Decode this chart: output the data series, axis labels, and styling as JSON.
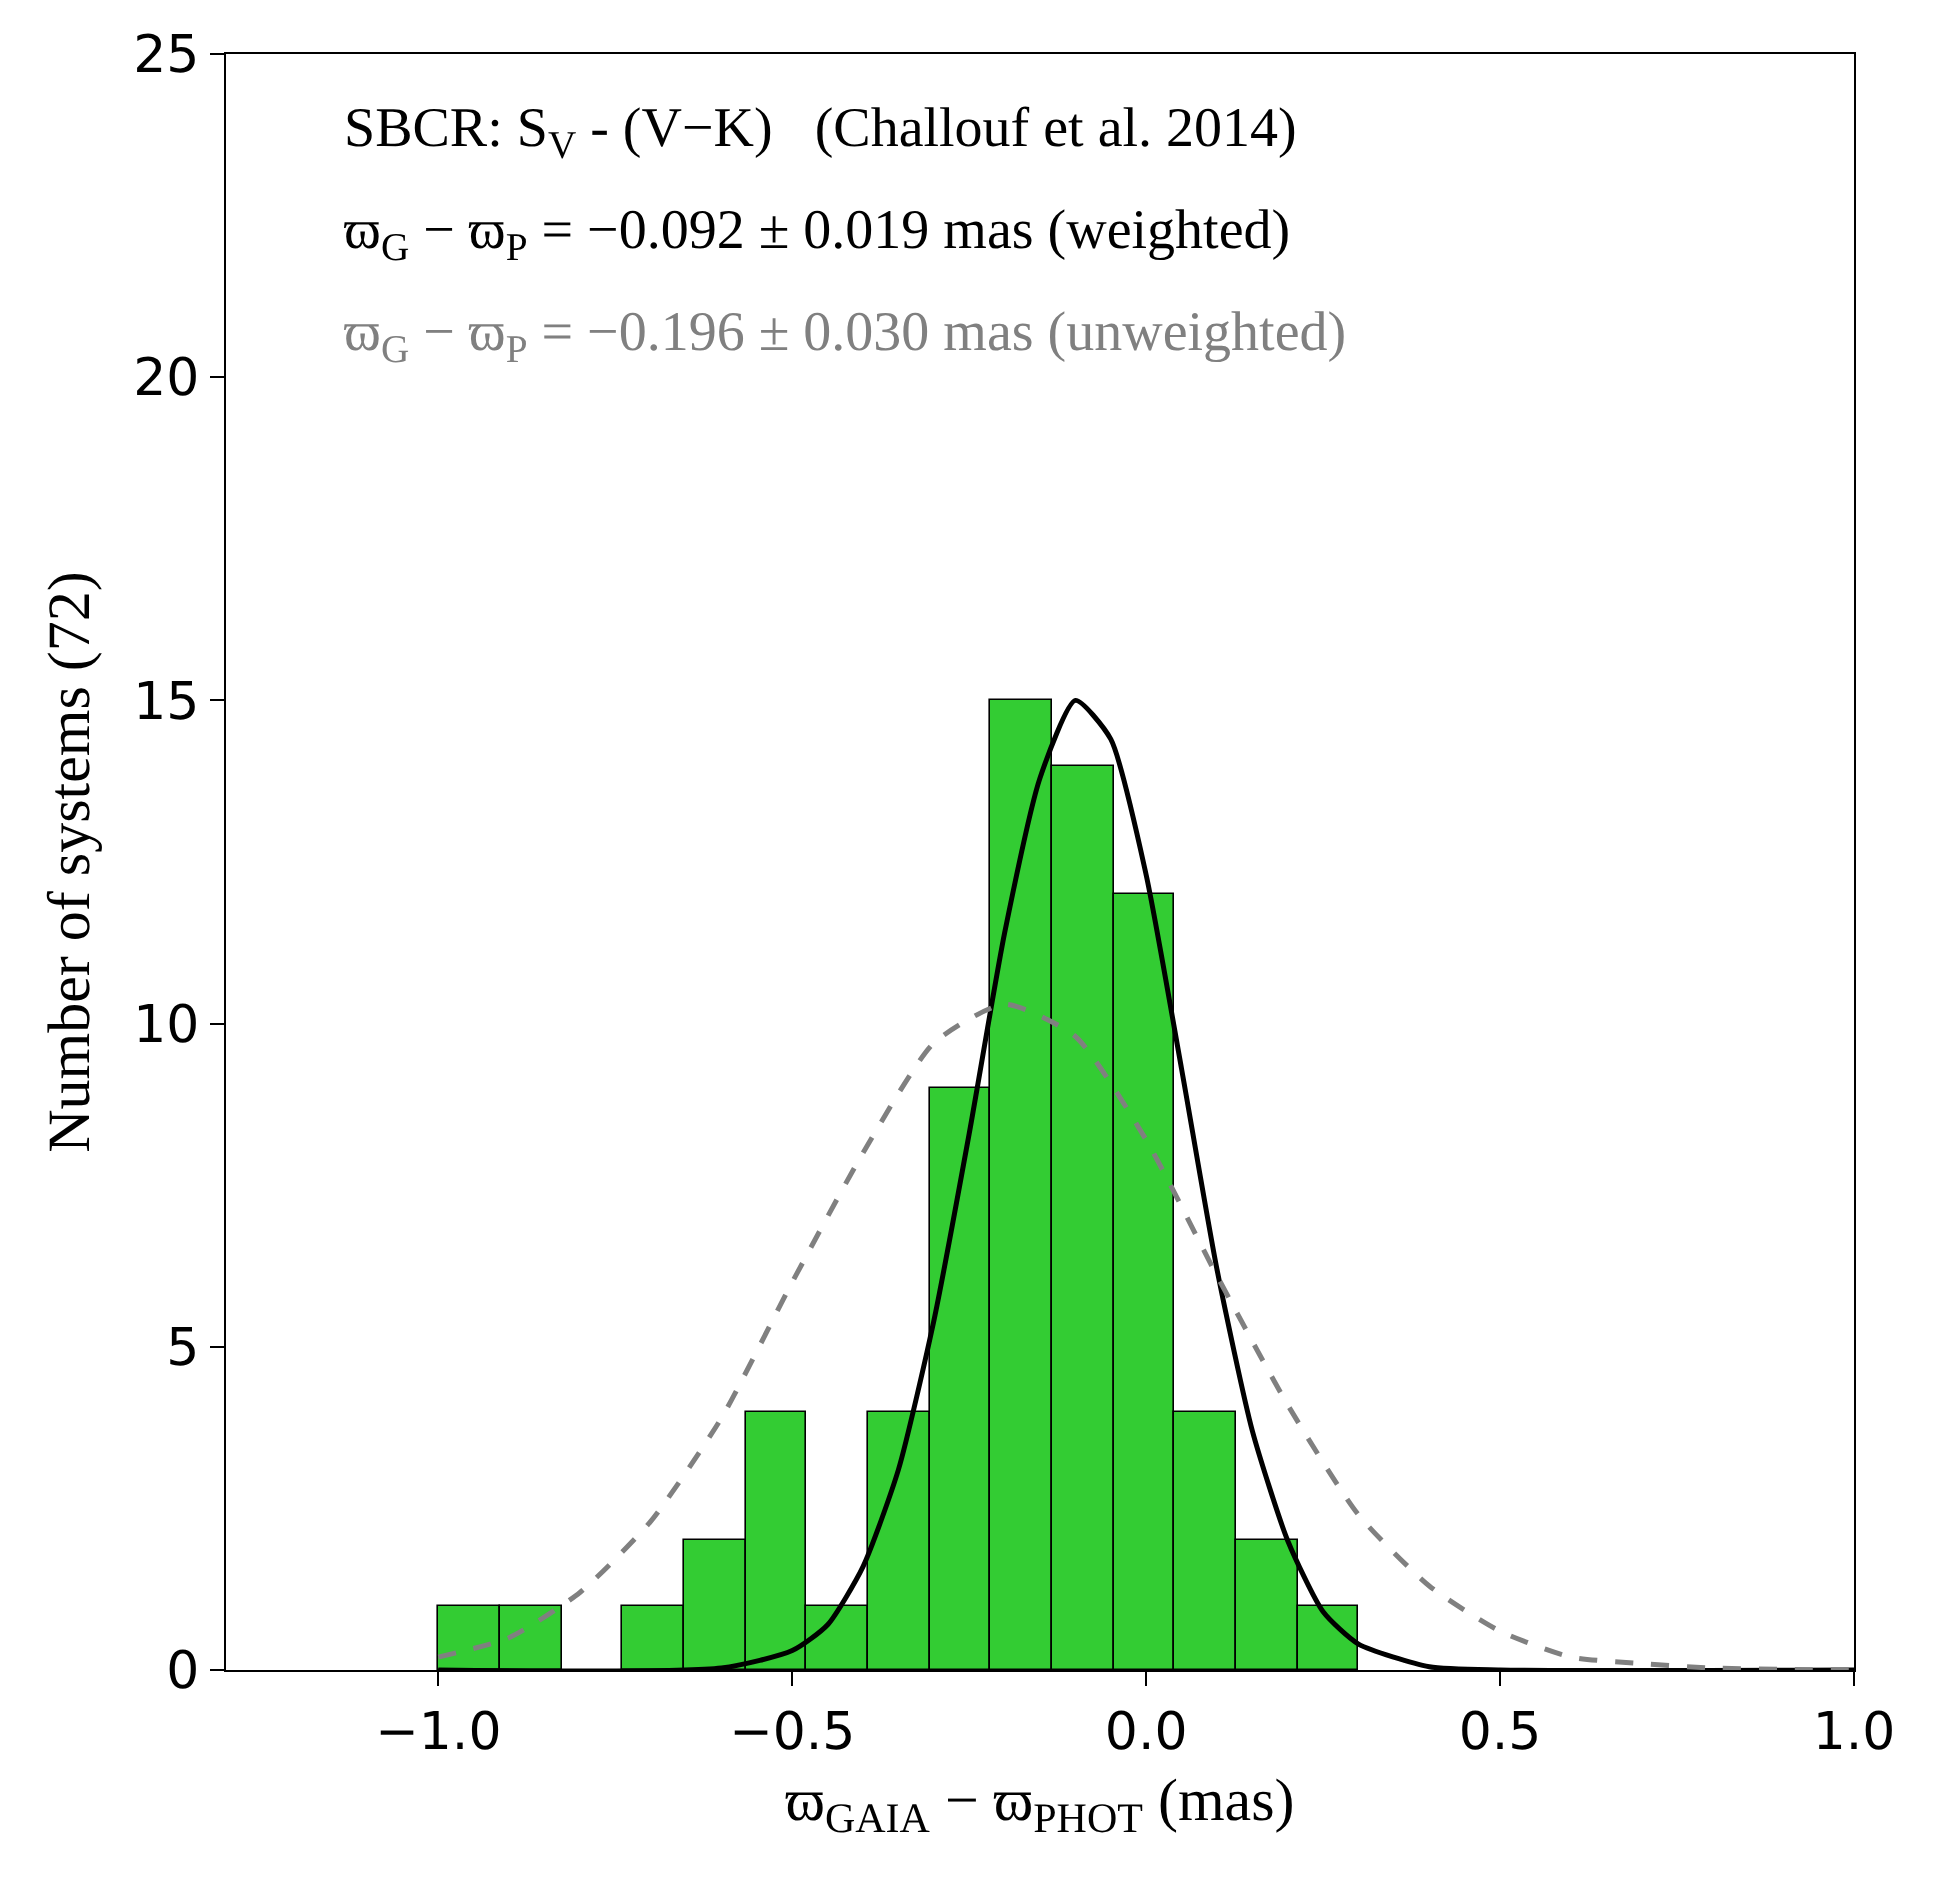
{
  "chart_data": {
    "type": "histogram",
    "xlabel": "ϖ$_{GAIA}$ − ϖ$_{PHOT}$ (mas)",
    "ylabel": "Number of systems (72)",
    "bins": [
      -1.0,
      -0.9133,
      -0.8267,
      -0.74,
      -0.6533,
      -0.5667,
      -0.48,
      -0.3933,
      -0.3067,
      -0.22,
      -0.1333,
      -0.0467,
      0.04,
      0.1267,
      0.2133,
      0.3
    ],
    "values": [
      1,
      1,
      0,
      1,
      2,
      4,
      1,
      4,
      9,
      15,
      14,
      12,
      4,
      2,
      1
    ],
    "color": "#33cc33",
    "series": [
      {
        "type": "line",
        "color": "#000000",
        "line_style": "solid",
        "x": [
          -1.0,
          -0.6,
          -0.5,
          -0.45,
          -0.4,
          -0.35,
          -0.3,
          -0.25,
          -0.2,
          -0.15,
          -0.1,
          -0.05,
          0.0,
          0.05,
          0.1,
          0.15,
          0.2,
          0.25,
          0.3,
          0.4,
          0.5,
          1.0
        ],
        "values": [
          0,
          0.03,
          0.3,
          0.7,
          1.6,
          3.1,
          5.4,
          8.3,
          11.4,
          13.8,
          15.0,
          14.4,
          12.3,
          9.3,
          6.2,
          3.7,
          2.0,
          0.9,
          0.4,
          0.05,
          0,
          0
        ]
      },
      {
        "type": "line",
        "color": "#808080",
        "line_style": "dashed",
        "x": [
          -1.0,
          -0.9,
          -0.8,
          -0.7,
          -0.6,
          -0.5,
          -0.4,
          -0.3,
          -0.2,
          -0.1,
          0.0,
          0.1,
          0.2,
          0.3,
          0.4,
          0.5,
          0.6,
          0.7,
          0.8,
          0.9,
          1.0
        ],
        "values": [
          0.2,
          0.5,
          1.2,
          2.3,
          3.9,
          6.0,
          8.0,
          9.7,
          10.3,
          9.8,
          8.2,
          6.1,
          4.1,
          2.4,
          1.3,
          0.6,
          0.2,
          0.1,
          0.03,
          0.01,
          0
        ]
      }
    ],
    "xlim": [
      -1.3,
      1.0
    ],
    "ylim": [
      0,
      25
    ],
    "xticks": [
      {
        "value": -1.0,
        "label": "−1.0"
      },
      {
        "value": -0.5,
        "label": "−0.5"
      },
      {
        "value": 0.0,
        "label": "0.0"
      },
      {
        "value": 0.5,
        "label": "0.5"
      },
      {
        "value": 1.0,
        "label": "1.0"
      }
    ],
    "yticks": [
      0,
      5,
      10,
      15,
      20,
      25
    ],
    "annotations": [
      "SBCR: S$_{V}$ - (V−K)   (Challouf et al. 2014)",
      "ϖ$_{G}$ − ϖ$_{P}$ = −0.092 ± 0.019 mas (weighted)",
      "ϖ$_{G}$ − ϖ$_{P}$ = −0.196 ± 0.030 mas (unweighted)"
    ]
  }
}
